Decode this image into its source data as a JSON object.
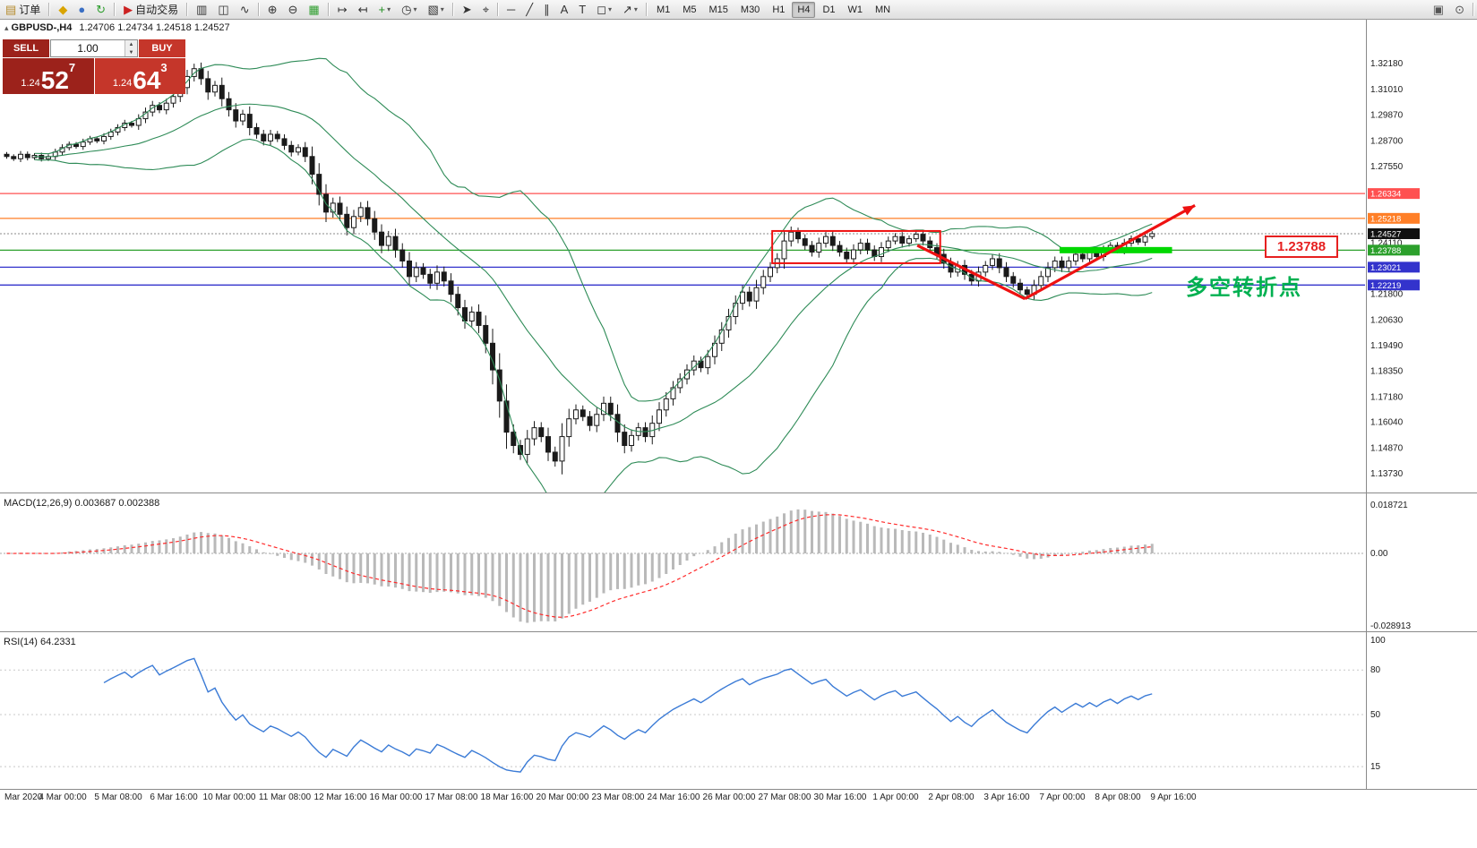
{
  "toolbar": {
    "groups": [
      [
        {
          "name": "new-order-button",
          "glyph": "▤",
          "color": "#b58a2a",
          "label": "订单"
        }
      ],
      [
        {
          "name": "favorites-icon",
          "glyph": "◆",
          "color": "#d9a400"
        },
        {
          "name": "accounts-icon",
          "glyph": "●",
          "color": "#3a6fc4"
        },
        {
          "name": "refresh-icon",
          "glyph": "↻",
          "color": "#2e9e2e"
        }
      ],
      [
        {
          "name": "autotrade-button",
          "glyph": "▶",
          "color": "#cc2222",
          "label": "自动交易"
        }
      ],
      [
        {
          "name": "bar-chart-icon",
          "glyph": "▥",
          "color": "#333"
        },
        {
          "name": "candlestick-chart-icon",
          "glyph": "◫",
          "color": "#333"
        },
        {
          "name": "line-chart-icon",
          "glyph": "∿",
          "color": "#333"
        }
      ],
      [
        {
          "name": "zoom-in-icon",
          "glyph": "⊕",
          "color": "#333"
        },
        {
          "name": "zoom-out-icon",
          "glyph": "⊖",
          "color": "#333"
        },
        {
          "name": "tile-windows-icon",
          "glyph": "▦",
          "color": "#2e9e2e"
        }
      ],
      [
        {
          "name": "auto-scroll-icon",
          "glyph": "↦",
          "color": "#333"
        },
        {
          "name": "chart-shift-icon",
          "glyph": "↤",
          "color": "#333"
        },
        {
          "name": "indicators-icon",
          "glyph": "+",
          "color": "#1f8f1f",
          "dropdown": true
        },
        {
          "name": "periods-icon",
          "glyph": "◷",
          "color": "#333",
          "dropdown": true
        },
        {
          "name": "templates-icon",
          "glyph": "▧",
          "color": "#333",
          "dropdown": true
        }
      ],
      [
        {
          "name": "cursor-icon",
          "glyph": "➤",
          "color": "#333"
        },
        {
          "name": "crosshair-icon",
          "glyph": "⌖",
          "color": "#333"
        }
      ],
      [
        {
          "name": "horizontal-line-icon",
          "glyph": "─",
          "color": "#333"
        },
        {
          "name": "trendline-icon",
          "glyph": "╱",
          "color": "#333"
        },
        {
          "name": "channel-icon",
          "glyph": "∥",
          "color": "#333"
        },
        {
          "name": "text-icon",
          "glyph": "A",
          "color": "#333"
        },
        {
          "name": "text-label-icon",
          "glyph": "T",
          "color": "#333"
        },
        {
          "name": "shapes-icon",
          "glyph": "◻",
          "color": "#333",
          "dropdown": true
        },
        {
          "name": "arrows-icon",
          "glyph": "↗",
          "color": "#333",
          "dropdown": true
        }
      ]
    ],
    "timeframes": [
      "M1",
      "M5",
      "M15",
      "M30",
      "H1",
      "H4",
      "D1",
      "W1",
      "MN"
    ],
    "active_timeframe": "H4",
    "right_icons": [
      {
        "name": "news-icon",
        "glyph": "▣",
        "color": "#555"
      },
      {
        "name": "search-icon",
        "glyph": "⊙",
        "color": "#555"
      }
    ]
  },
  "trade_panel": {
    "sell_label": "SELL",
    "buy_label": "BUY",
    "volume": "1.00",
    "sell_quote": {
      "prefix": "1.24",
      "big": "52",
      "sup": "7"
    },
    "buy_quote": {
      "prefix": "1.24",
      "big": "64",
      "sup": "3"
    }
  },
  "chart_header": {
    "symbol": "GBPUSD-,H4",
    "ohlc": "1.24706 1.24734 1.24518 1.24527"
  },
  "indicator_labels": {
    "macd": "MACD(12,26,9) 0.003687 0.002388",
    "rsi": "RSI(14) 64.2331"
  },
  "annotations": {
    "price_label": "1.23788",
    "turning_point_text": "多空转折点"
  },
  "macd_axis": [
    "0.018721",
    "0.00",
    "-0.028913"
  ],
  "rsi_axis": [
    "100",
    "80",
    "50",
    "15"
  ],
  "time_axis": [
    "Mar 2020",
    "4 Mar 00:00",
    "5 Mar 08:00",
    "6 Mar 16:00",
    "10 Mar 00:00",
    "11 Mar 08:00",
    "12 Mar 16:00",
    "16 Mar 00:00",
    "17 Mar 08:00",
    "18 Mar 16:00",
    "20 Mar 00:00",
    "23 Mar 08:00",
    "24 Mar 16:00",
    "26 Mar 00:00",
    "27 Mar 08:00",
    "30 Mar 16:00",
    "1 Apr 00:00",
    "2 Apr 08:00",
    "3 Apr 16:00",
    "7 Apr 00:00",
    "8 Apr 08:00",
    "9 Apr 16:00"
  ],
  "chart_data": {
    "type": "candlestick",
    "symbol": "GBPUSD",
    "timeframe": "H4",
    "title": "GBPUSD-,H4",
    "ohlc_display": {
      "open": "1.24706",
      "high": "1.24734",
      "low": "1.24518",
      "close": "1.24527"
    },
    "current_price": 1.24527,
    "ylim": [
      1.133,
      1.339
    ],
    "first_open": 1.281,
    "closes": [
      1.28,
      1.279,
      1.281,
      1.2795,
      1.2805,
      1.279,
      1.28,
      1.282,
      1.284,
      1.2855,
      1.2845,
      1.2865,
      1.288,
      1.287,
      1.289,
      1.291,
      1.293,
      1.295,
      1.294,
      1.297,
      1.3,
      1.303,
      1.301,
      1.304,
      1.307,
      1.311,
      1.316,
      1.3195,
      1.315,
      1.309,
      1.312,
      1.306,
      1.301,
      1.296,
      1.299,
      1.293,
      1.29,
      1.287,
      1.29,
      1.288,
      1.285,
      1.282,
      1.284,
      1.28,
      1.272,
      1.263,
      1.255,
      1.259,
      1.254,
      1.248,
      1.253,
      1.257,
      1.252,
      1.246,
      1.24,
      1.244,
      1.238,
      1.233,
      1.226,
      1.23,
      1.227,
      1.223,
      1.228,
      1.224,
      1.218,
      1.212,
      1.206,
      1.21,
      1.204,
      1.196,
      1.184,
      1.17,
      1.156,
      1.15,
      1.146,
      1.153,
      1.158,
      1.154,
      1.147,
      1.143,
      1.154,
      1.162,
      1.166,
      1.163,
      1.159,
      1.164,
      1.169,
      1.164,
      1.156,
      1.15,
      1.1545,
      1.158,
      1.154,
      1.16,
      1.166,
      1.171,
      1.176,
      1.18,
      1.184,
      1.188,
      1.185,
      1.19,
      1.196,
      1.202,
      1.208,
      1.214,
      1.219,
      1.215,
      1.221,
      1.226,
      1.23,
      1.234,
      1.242,
      1.246,
      1.243,
      1.24,
      1.237,
      1.241,
      1.244,
      1.24,
      1.237,
      1.234,
      1.238,
      1.241,
      1.238,
      1.235,
      1.239,
      1.242,
      1.244,
      1.241,
      1.243,
      1.245,
      1.242,
      1.239,
      1.236,
      1.232,
      1.228,
      1.231,
      1.227,
      1.224,
      1.228,
      1.231,
      1.234,
      1.23,
      1.226,
      1.223,
      1.22,
      1.218,
      1.222,
      1.226,
      1.23,
      1.233,
      1.23,
      1.233,
      1.236,
      1.234,
      1.237,
      1.235,
      1.238,
      1.24,
      1.238,
      1.241,
      1.243,
      1.2415,
      1.244,
      1.2453
    ],
    "indicators": {
      "bollinger": {
        "period": 20,
        "deviation": 2,
        "color": "#2e8b57"
      },
      "macd": {
        "fast": 12,
        "slow": 26,
        "signal": 9,
        "values": [
          0.003687,
          0.002388
        ],
        "bar_color": "#b9b9b9",
        "signal_color": "#ff2a2a"
      },
      "rsi": {
        "period": 14,
        "value": 64.2331,
        "color": "#3b7bd6",
        "levels": [
          80,
          50,
          15
        ]
      }
    },
    "price_axis_ticks": [
      1.3218,
      1.3101,
      1.2987,
      1.287,
      1.2755,
      1.2411,
      1.218,
      1.2063,
      1.1949,
      1.1835,
      1.1718,
      1.1604,
      1.1487,
      1.1373
    ],
    "price_lines": [
      {
        "price": 1.26334,
        "color": "#ff5050",
        "label": "1.26334"
      },
      {
        "price": 1.25218,
        "color": "#ff7f27",
        "label": "1.25218"
      },
      {
        "price": 1.23788,
        "color": "#2ca02c",
        "label": "1.23788"
      },
      {
        "price": 1.23021,
        "color": "#3333cc",
        "label": "1.23021"
      },
      {
        "price": 1.22219,
        "color": "#3333cc",
        "label": "1.22219"
      }
    ],
    "drawings": {
      "rectangle": {
        "i1": 110.6,
        "i2": 134.8,
        "top": 1.2465,
        "bottom": 1.232,
        "color": "#ee1111"
      },
      "trend_segments": [
        {
          "i1": 131.5,
          "p1": 1.24,
          "i2": 147.0,
          "p2": 1.216
        },
        {
          "i1": 147.0,
          "p1": 1.216,
          "i2": 171.5,
          "p2": 1.258,
          "arrow": true
        }
      ],
      "trend_color": "#ee1111",
      "highlight_bar": {
        "i1": 152.0,
        "i2": 168.2,
        "price": 1.23788,
        "color": "#00d800"
      }
    }
  }
}
